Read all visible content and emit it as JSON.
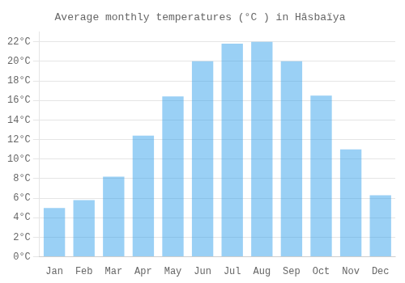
{
  "chart_data": {
    "type": "bar",
    "title": "Average monthly temperatures (°C ) in Hâsbaïya",
    "categories": [
      "Jan",
      "Feb",
      "Mar",
      "Apr",
      "May",
      "Jun",
      "Jul",
      "Aug",
      "Sep",
      "Oct",
      "Nov",
      "Dec"
    ],
    "values": [
      5.0,
      5.8,
      8.2,
      12.4,
      16.4,
      20.0,
      21.8,
      22.0,
      20.0,
      16.5,
      11.0,
      6.3
    ],
    "ylim": [
      0,
      23
    ],
    "yticks": [
      {
        "value": 0,
        "label": "0°C"
      },
      {
        "value": 2,
        "label": "2°C"
      },
      {
        "value": 4,
        "label": "4°C"
      },
      {
        "value": 6,
        "label": "6°C"
      },
      {
        "value": 8,
        "label": "8°C"
      },
      {
        "value": 10,
        "label": "10°C"
      },
      {
        "value": 12,
        "label": "12°C"
      },
      {
        "value": 14,
        "label": "14°C"
      },
      {
        "value": 16,
        "label": "16°C"
      },
      {
        "value": 18,
        "label": "18°C"
      },
      {
        "value": 20,
        "label": "20°C"
      },
      {
        "value": 22,
        "label": "22°C"
      }
    ],
    "grid": true
  }
}
